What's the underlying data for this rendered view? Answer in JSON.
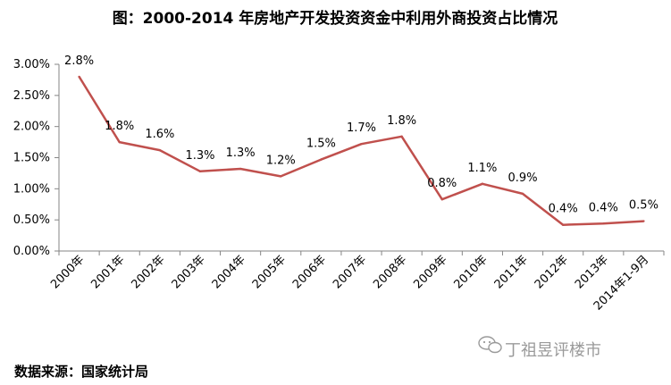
{
  "chart_data": {
    "type": "line",
    "title": "图：2000-2014 年房地产开发投资资金中利用外商投资占比情况",
    "categories": [
      "2000年",
      "2001年",
      "2002年",
      "2003年",
      "2004年",
      "2005年",
      "2006年",
      "2007年",
      "2008年",
      "2009年",
      "2010年",
      "2011年",
      "2012年",
      "2013年",
      "2014年1-9月"
    ],
    "values": [
      2.8,
      1.75,
      1.62,
      1.28,
      1.32,
      1.2,
      1.47,
      1.72,
      1.84,
      0.83,
      1.08,
      0.92,
      0.42,
      0.44,
      0.48
    ],
    "data_labels": [
      "2.8%",
      "1.8%",
      "1.6%",
      "1.3%",
      "1.3%",
      "1.2%",
      "1.5%",
      "1.7%",
      "1.8%",
      "0.8%",
      "1.1%",
      "0.9%",
      "0.4%",
      "0.4%",
      "0.5%"
    ],
    "yticks": [
      "0.00%",
      "0.50%",
      "1.00%",
      "1.50%",
      "2.00%",
      "2.50%",
      "3.00%"
    ],
    "ylim": [
      0,
      3.0
    ],
    "xlabel": "",
    "ylabel": "",
    "grid": false,
    "legend": "none",
    "line_color": "#c0504d"
  },
  "source": "数据来源：国家统计局",
  "watermark": "丁祖昱评楼市"
}
